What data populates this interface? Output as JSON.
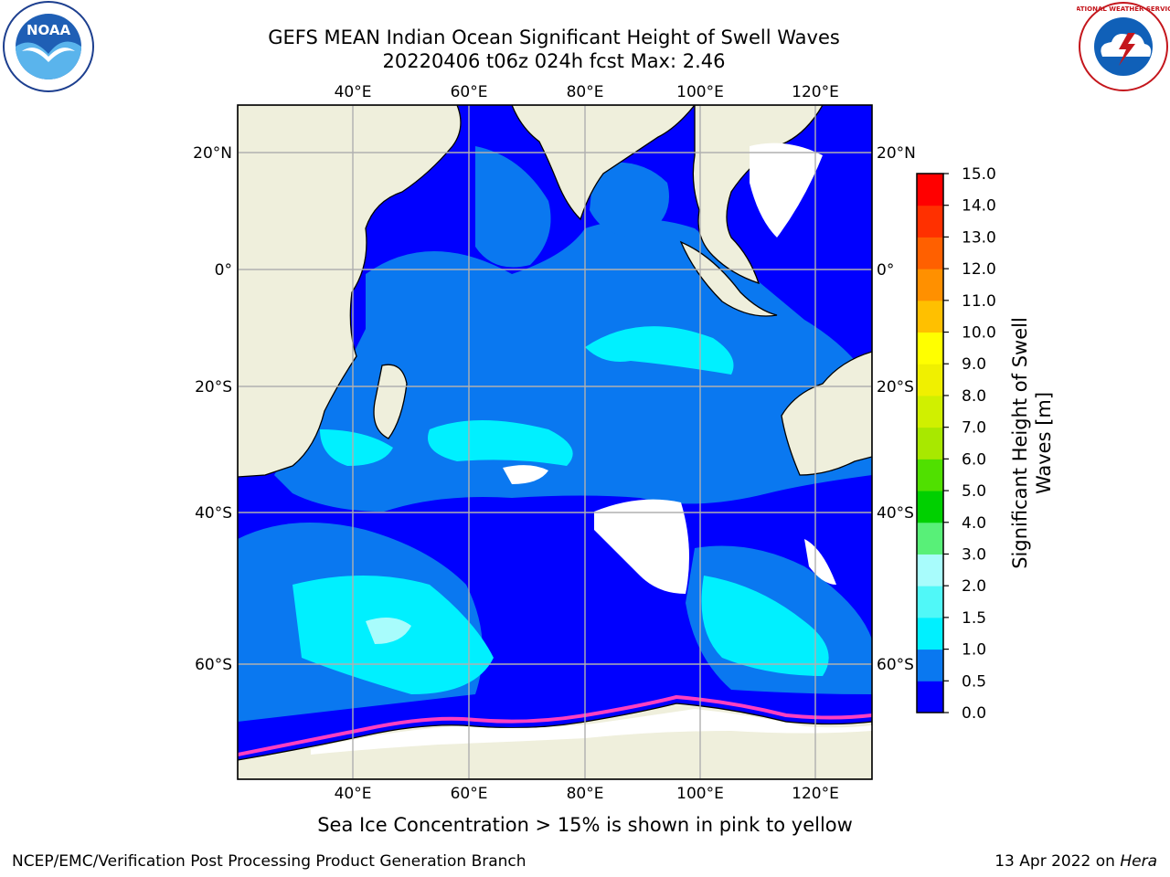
{
  "title_line1": "GEFS MEAN Indian Ocean Significant Height of Swell Waves",
  "title_line2": "20220406 t06z 024h fcst   Max: 2.46",
  "lon_ticks": [
    "40°E",
    "60°E",
    "80°E",
    "100°E",
    "120°E"
  ],
  "lat_ticks": [
    "20°N",
    "0°",
    "20°S",
    "40°S",
    "60°S"
  ],
  "colorbar": {
    "label_line1": "Significant Height of Swell",
    "label_line2": "Waves [m]",
    "ticks": [
      "0.0",
      "0.5",
      "1.0",
      "1.5",
      "2.0",
      "3.0",
      "4.0",
      "5.0",
      "6.0",
      "7.0",
      "8.0",
      "9.0",
      "10.0",
      "11.0",
      "12.0",
      "13.0",
      "14.0",
      "15.0"
    ],
    "colors": [
      "#0000ff",
      "#0a78f0",
      "#00f0ff",
      "#50f8f8",
      "#a8fcfc",
      "#58f078",
      "#00d000",
      "#50e000",
      "#a8e800",
      "#d0f000",
      "#f0f000",
      "#ffff00",
      "#ffc000",
      "#ff9000",
      "#ff6000",
      "#ff3000",
      "#ff0000"
    ]
  },
  "logos": {
    "noaa": "NOAA",
    "nws": "NATIONAL WEATHER SERVICE"
  },
  "bottom_note": "Sea Ice Concentration > 15% is shown in pink to yellow",
  "credit_left": "NCEP/EMC/Verification Post Processing Product Generation Branch",
  "credit_right_date": "13 Apr 2022 on ",
  "credit_right_host": "Hera",
  "colors": {
    "land": "#efefdc",
    "ocean_low": "#0000ff",
    "ocean_mid": "#0a78f0",
    "ocean_high": "#00f0ff",
    "ice_edge": "#ff40c0",
    "grid": "#b0b0b0"
  }
}
